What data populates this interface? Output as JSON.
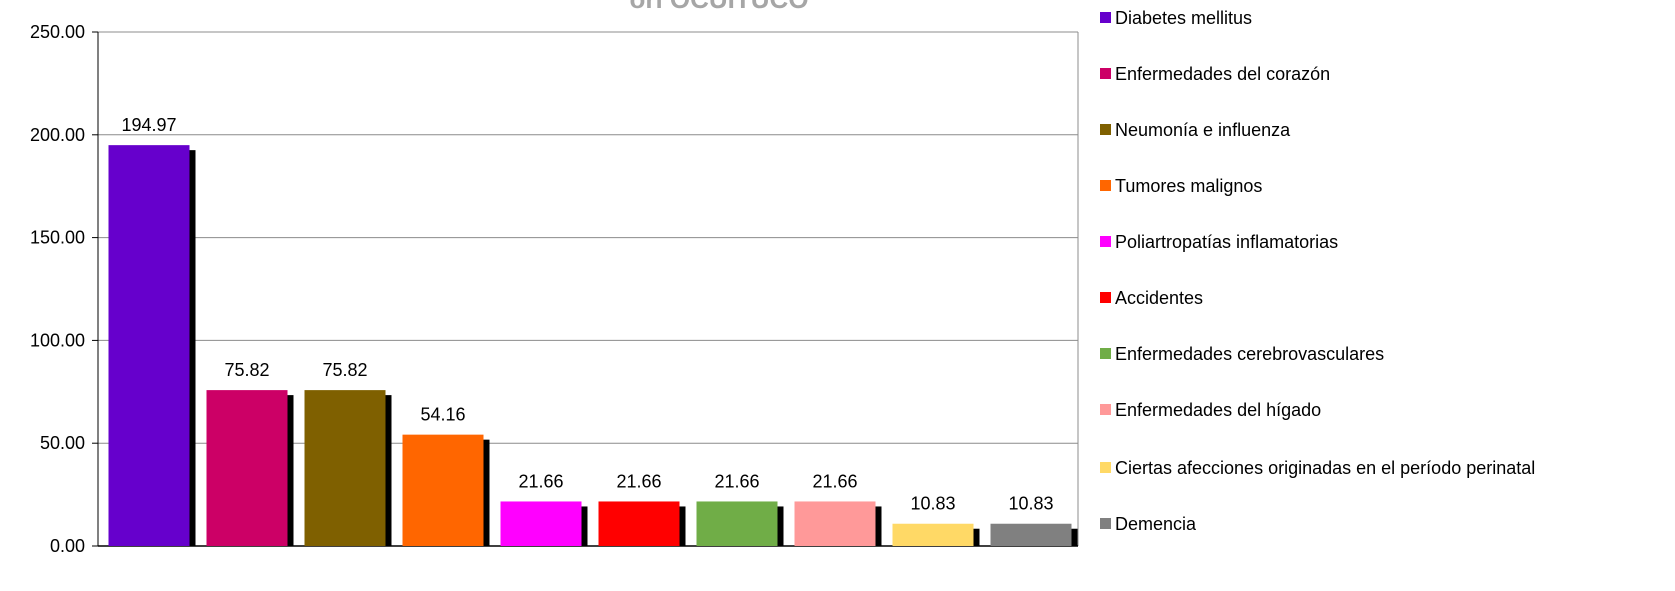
{
  "chart_data": {
    "type": "bar",
    "title": "órí OCUITUCO",
    "categories": [
      "Diabetes mellitus",
      "Enfermedades del corazón",
      "Neumonía e influenza",
      "Tumores malignos",
      " Poliartropatías inflamatorias",
      "Accidentes",
      "Enfermedades cerebrovasculares",
      "Enfermedades del hígado",
      "Ciertas afecciones originadas en el período perinatal",
      "Demencia"
    ],
    "values": [
      194.97,
      75.82,
      75.82,
      54.16,
      21.66,
      21.66,
      21.66,
      21.66,
      10.83,
      10.83
    ],
    "data_labels": [
      "194.97",
      "75.82",
      "75.82",
      "54.16",
      "21.66",
      "21.66",
      "21.66",
      "21.66",
      "10.83",
      "10.83"
    ],
    "colors": [
      "#6600cc",
      "#cc0066",
      "#7f6000",
      "#ff6600",
      "#ff00ff",
      "#ff0000",
      "#70ad47",
      "#ff9999",
      "#ffd966",
      "#808080"
    ],
    "ylim": [
      0,
      250
    ],
    "yticks": [
      "0.00",
      "50.00",
      "100.00",
      "150.00",
      "200.00",
      "250.00"
    ],
    "grid": true,
    "legend_position": "right"
  }
}
